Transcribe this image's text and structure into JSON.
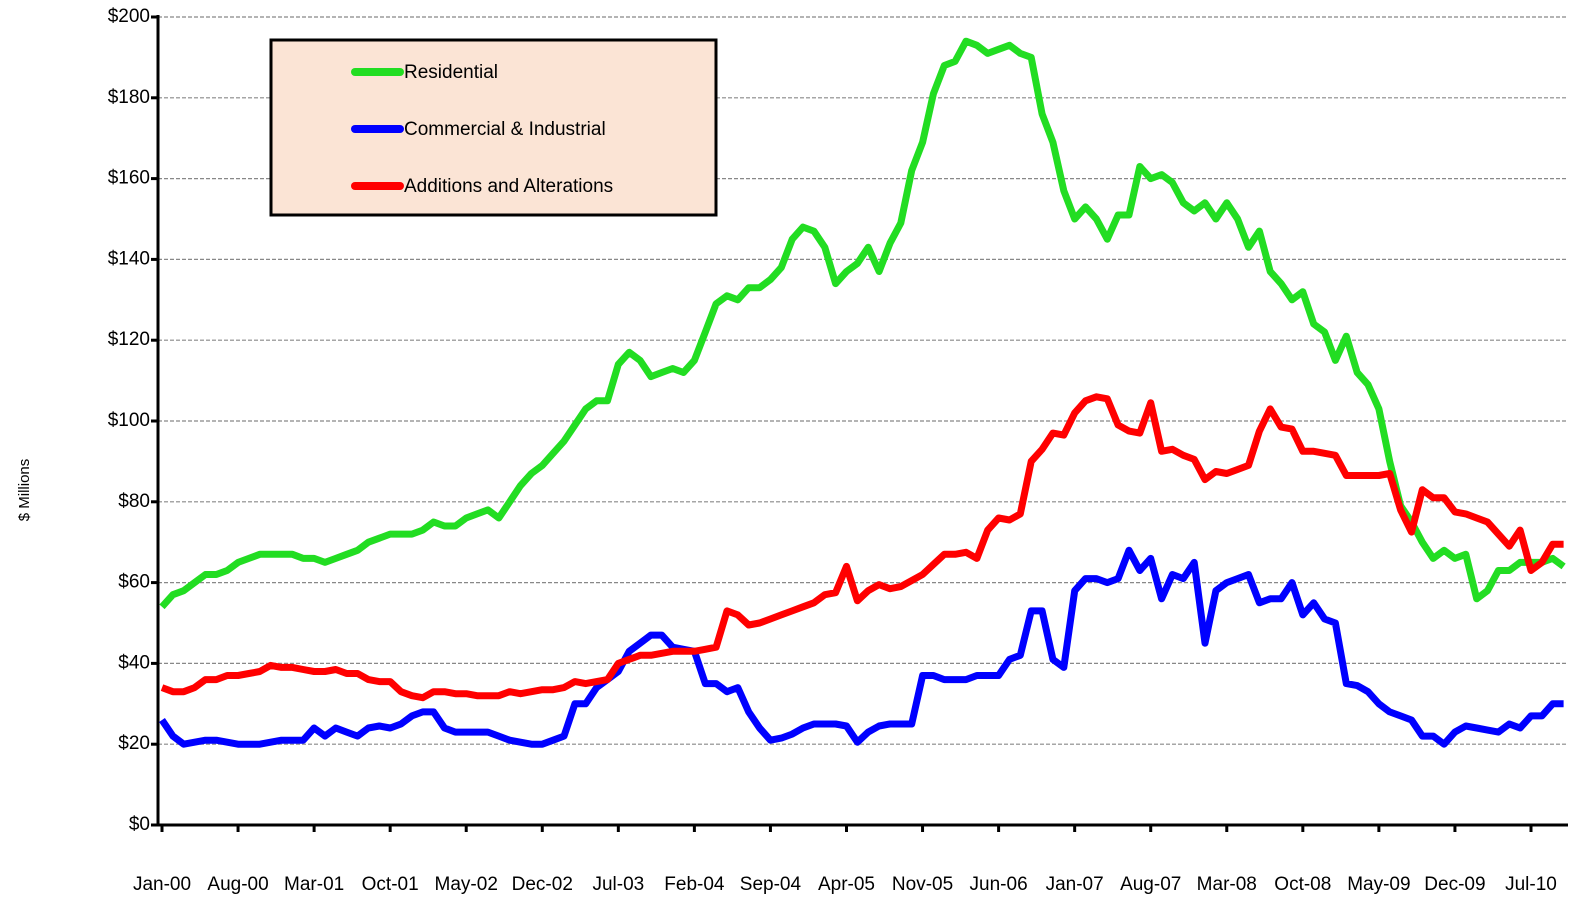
{
  "chart_data": {
    "type": "line",
    "ylabel": "$ Millions",
    "categories": [
      "Jan-00",
      null,
      null,
      null,
      null,
      null,
      null,
      "Aug-00",
      null,
      null,
      null,
      null,
      null,
      null,
      "Mar-01",
      null,
      null,
      null,
      null,
      null,
      null,
      "Oct-01",
      null,
      null,
      null,
      null,
      null,
      null,
      "May-02",
      null,
      null,
      null,
      null,
      null,
      null,
      "Dec-02",
      null,
      null,
      null,
      null,
      null,
      null,
      "Jul-03",
      null,
      null,
      null,
      null,
      null,
      null,
      "Feb-04",
      null,
      null,
      null,
      null,
      null,
      null,
      "Sep-04",
      null,
      null,
      null,
      null,
      null,
      null,
      "Apr-05",
      null,
      null,
      null,
      null,
      null,
      null,
      "Nov-05",
      null,
      null,
      null,
      null,
      null,
      null,
      "Jun-06",
      null,
      null,
      null,
      null,
      null,
      null,
      "Jan-07",
      null,
      null,
      null,
      null,
      null,
      null,
      "Aug-07",
      null,
      null,
      null,
      null,
      null,
      null,
      "Mar-08",
      null,
      null,
      null,
      null,
      null,
      null,
      "Oct-08",
      null,
      null,
      null,
      null,
      null,
      null,
      "May-09",
      null,
      null,
      null,
      null,
      null,
      null,
      "Dec-09",
      null,
      null,
      null,
      null,
      null,
      null,
      "Jul-10",
      null,
      null,
      null
    ],
    "series": [
      {
        "name": "Residential",
        "color": "#22dd22",
        "values": [
          54,
          57,
          58,
          60,
          62,
          62,
          63,
          65,
          66,
          67,
          67,
          67,
          67,
          66,
          66,
          65,
          66,
          67,
          68,
          70,
          71,
          72,
          72,
          72,
          73,
          75,
          74,
          74,
          76,
          77,
          78,
          76,
          80,
          84,
          87,
          89,
          92,
          95,
          99,
          103,
          105,
          105,
          114,
          117,
          115,
          111,
          112,
          113,
          112,
          115,
          122,
          129,
          131,
          130,
          133,
          133,
          135,
          138,
          145,
          148,
          147,
          143,
          134,
          137,
          139,
          143,
          137,
          144,
          149,
          162,
          169,
          181,
          188,
          189,
          194,
          193,
          191,
          192,
          193,
          191,
          190,
          176,
          169,
          157,
          150,
          153,
          150,
          145,
          151,
          151,
          163,
          160,
          161,
          159,
          154,
          152,
          154,
          150,
          154,
          150,
          143,
          147,
          137,
          134,
          130,
          132,
          124,
          122,
          115,
          121,
          112,
          109,
          103,
          90,
          79,
          75,
          70,
          66,
          68,
          66,
          67,
          56,
          58,
          63,
          63,
          65,
          65,
          65,
          66,
          64
        ]
      },
      {
        "name": "Commercial & Industrial",
        "color": "#0000ff",
        "values": [
          26,
          22,
          20,
          20.5,
          21,
          21,
          20.5,
          20,
          20,
          20,
          20.5,
          21,
          21,
          21,
          24,
          22,
          24,
          23,
          22,
          24,
          24.5,
          24,
          25,
          27,
          28,
          28,
          24,
          23,
          23,
          23,
          23,
          22,
          21,
          20.5,
          20,
          20,
          21,
          22,
          30,
          30,
          34,
          36,
          38,
          43,
          45,
          47,
          47,
          44,
          43.5,
          43,
          35,
          35,
          33,
          34,
          28,
          24,
          21,
          21.5,
          22.5,
          24,
          25,
          25,
          25,
          24.5,
          20.5,
          23,
          24.5,
          25,
          25,
          25,
          37,
          37,
          36,
          36,
          36,
          37,
          37,
          37,
          41,
          42,
          53,
          53,
          41,
          39,
          58,
          61,
          61,
          60,
          61,
          68,
          63,
          66,
          56,
          62,
          61,
          65,
          45,
          58,
          60,
          61,
          62,
          55,
          56,
          56,
          60,
          52,
          55,
          51,
          50,
          35,
          34.5,
          33,
          30,
          28,
          27,
          26,
          22,
          22,
          20,
          23,
          24.5,
          24,
          23.5,
          23,
          25,
          24,
          27,
          27,
          30,
          30
        ]
      },
      {
        "name": "Additions and Alterations",
        "color": "#ff0000",
        "values": [
          34,
          33,
          33,
          34,
          36,
          36,
          37,
          37,
          37.5,
          38,
          39.5,
          39,
          39,
          38.5,
          38,
          38,
          38.5,
          37.5,
          37.5,
          36,
          35.5,
          35.5,
          33,
          32,
          31.5,
          33,
          33,
          32.5,
          32.5,
          32,
          32,
          32,
          33,
          32.5,
          33,
          33.5,
          33.5,
          34,
          35.5,
          35,
          35.5,
          36,
          40,
          41,
          42,
          42,
          42.5,
          43,
          43,
          43,
          43.5,
          44,
          53,
          52,
          49.5,
          50,
          51,
          52,
          53,
          54,
          55,
          57,
          57.5,
          64,
          55.5,
          58,
          59.5,
          58.5,
          59,
          60.5,
          62,
          64.5,
          67,
          67,
          67.5,
          66,
          73,
          76,
          75.5,
          77,
          90,
          93,
          97,
          96.5,
          102,
          105,
          106,
          105.5,
          99,
          97.5,
          97,
          104.5,
          92.5,
          93,
          91.5,
          90.5,
          85.5,
          87.5,
          87,
          88,
          89,
          97.5,
          103,
          98.5,
          98,
          92.5,
          92.5,
          92,
          91.5,
          86.5,
          86.5,
          86.5,
          86.5,
          87,
          78,
          72.5,
          83,
          81,
          81,
          77.5,
          77,
          76,
          75,
          72,
          69,
          73,
          63,
          65,
          69.5,
          69.5
        ]
      }
    ],
    "ylim": [
      0,
      200
    ],
    "yticks": [
      {
        "value": 0,
        "label": "$0"
      },
      {
        "value": 20,
        "label": "$20"
      },
      {
        "value": 40,
        "label": "$40"
      },
      {
        "value": 60,
        "label": "$60"
      },
      {
        "value": 80,
        "label": "$80"
      },
      {
        "value": 100,
        "label": "$100"
      },
      {
        "value": 120,
        "label": "$120"
      },
      {
        "value": 140,
        "label": "$140"
      },
      {
        "value": 160,
        "label": "$160"
      },
      {
        "value": 180,
        "label": "$180"
      },
      {
        "value": 200,
        "label": "$200"
      }
    ],
    "grid": true,
    "legend": "upper left"
  }
}
